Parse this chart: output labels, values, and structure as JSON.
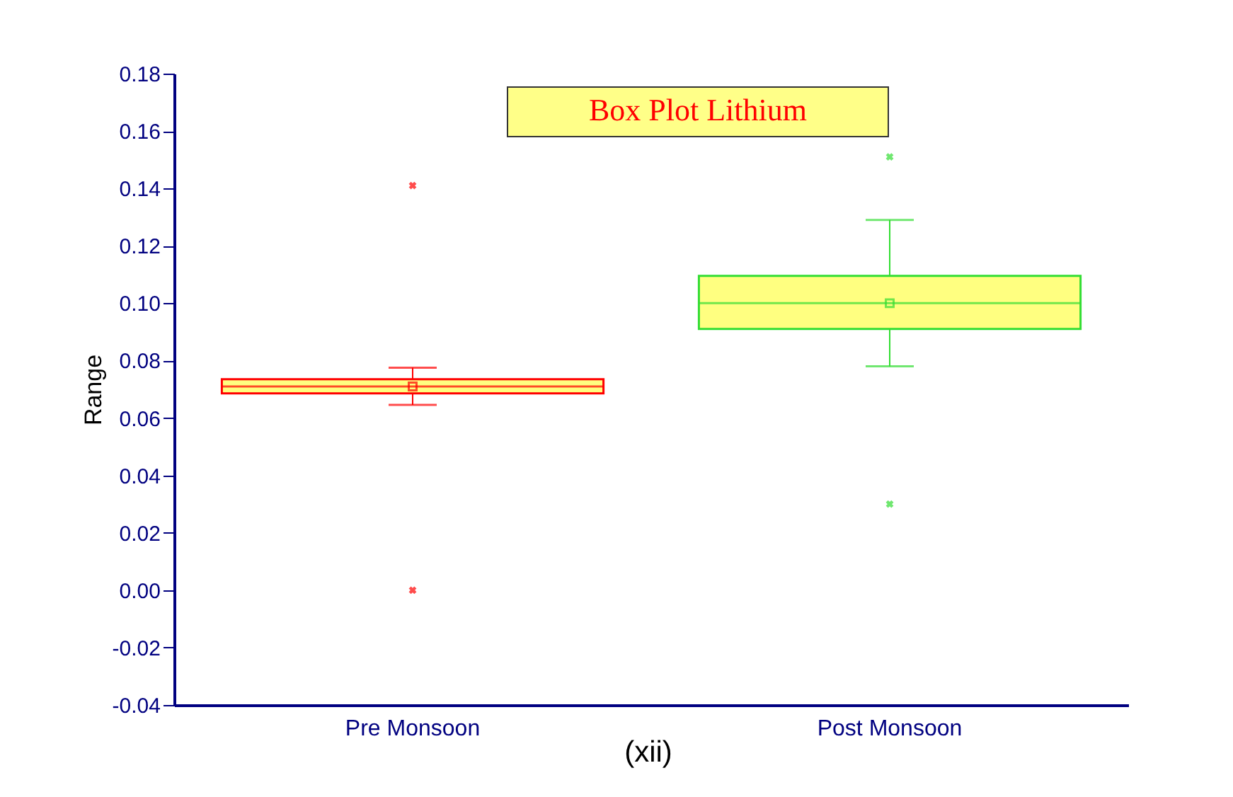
{
  "chart_data": {
    "type": "box",
    "title": "Box Plot Lithium",
    "ylabel": "Range",
    "categories": [
      "Pre Monsoon",
      "Post Monsoon"
    ],
    "colors": [
      "#ff0000",
      "#33dd33"
    ],
    "boxes": [
      {
        "low": 0.0646,
        "q1": 0.0686,
        "median": 0.071,
        "q3": 0.0735,
        "high": 0.0775,
        "mean": 0.071,
        "outliers": [
          0.141,
          0
        ]
      },
      {
        "low": 0.078,
        "q1": 0.091,
        "median": 0.1,
        "q3": 0.1095,
        "high": 0.129,
        "mean": 0.1,
        "outliers": [
          0.151,
          0.03
        ]
      }
    ],
    "ylim": [
      -0.04,
      0.18
    ],
    "yticks": [
      -0.04,
      -0.02,
      {
        "value": 0,
        "label": "0.00"
      },
      0.02,
      0.04,
      0.06,
      0.08,
      {
        "value": 0.1,
        "label": "0.10"
      },
      0.12,
      0.14,
      0.16,
      0.18
    ],
    "grid": false,
    "legend": false,
    "marker": "square",
    "annotations": [
      "(xii)"
    ]
  }
}
